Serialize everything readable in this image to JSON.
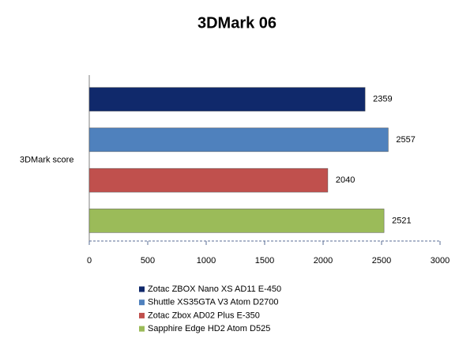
{
  "chart_data": {
    "type": "bar",
    "orientation": "horizontal",
    "title": "3DMark 06",
    "categories": [
      "3DMark score"
    ],
    "series": [
      {
        "name": "Zotac ZBOX Nano XS AD11 E-450",
        "color": "#10296b",
        "values": [
          2359
        ]
      },
      {
        "name": "Shuttle XS35GTA V3 Atom D2700",
        "color": "#4f81bd",
        "values": [
          2557
        ]
      },
      {
        "name": "Zotac Zbox AD02 Plus E-350",
        "color": "#c0504d",
        "values": [
          2040
        ]
      },
      {
        "name": "Sapphire Edge HD2  Atom D525",
        "color": "#9bbb59",
        "values": [
          2521
        ]
      }
    ],
    "xlim": [
      0,
      3000
    ],
    "xticks": [
      0,
      500,
      1000,
      1500,
      2000,
      2500,
      3000
    ]
  }
}
